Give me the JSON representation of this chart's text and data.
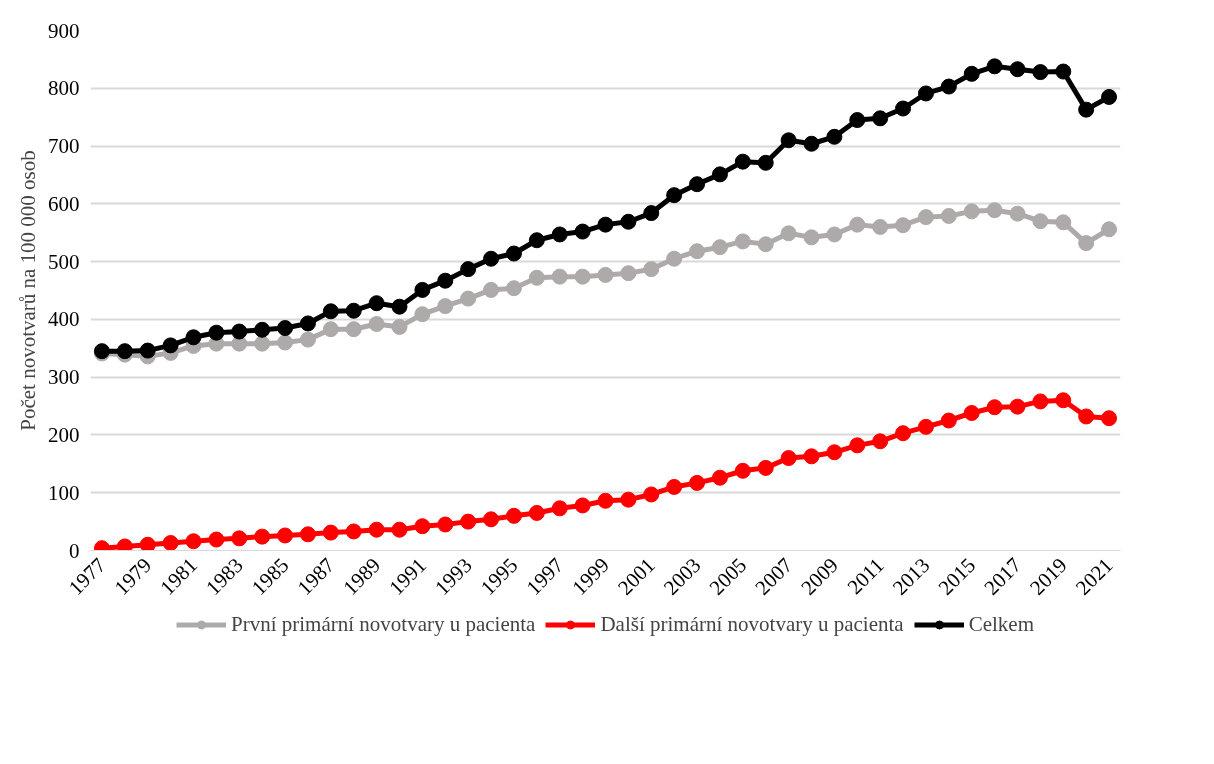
{
  "chart_data": {
    "type": "line",
    "ylabel": "Počet novotvarů na 100 000 osob",
    "x": [
      1977,
      1978,
      1979,
      1980,
      1981,
      1982,
      1983,
      1984,
      1985,
      1986,
      1987,
      1988,
      1989,
      1990,
      1991,
      1992,
      1993,
      1994,
      1995,
      1996,
      1997,
      1998,
      1999,
      2000,
      2001,
      2002,
      2003,
      2004,
      2005,
      2006,
      2007,
      2008,
      2009,
      2010,
      2011,
      2012,
      2013,
      2014,
      2015,
      2016,
      2017,
      2018,
      2019,
      2020,
      2021
    ],
    "series": [
      {
        "name": "První primární novotvary u pacienta",
        "color": "#aeaaaa",
        "values": [
          341,
          339,
          336,
          342,
          354,
          358,
          358,
          358,
          360,
          365,
          383,
          383,
          392,
          387,
          409,
          423,
          436,
          451,
          454,
          472,
          474,
          474,
          477,
          480,
          487,
          505,
          518,
          525,
          535,
          530,
          549,
          542,
          547,
          564,
          560,
          563,
          577,
          579,
          587,
          589,
          583,
          570,
          568,
          532,
          556
        ]
      },
      {
        "name": "Další primární novotvary u pacienta",
        "color": "#ff0000",
        "values": [
          4,
          7,
          10,
          13,
          16,
          19,
          21,
          24,
          26,
          28,
          31,
          33,
          36,
          36,
          42,
          45,
          50,
          54,
          60,
          65,
          73,
          78,
          86,
          88,
          97,
          110,
          117,
          126,
          138,
          143,
          160,
          163,
          170,
          182,
          189,
          203,
          214,
          225,
          238,
          248,
          249,
          258,
          260,
          232,
          229
        ]
      },
      {
        "name": "Celkem",
        "color": "#000000",
        "values": [
          345,
          345,
          346,
          355,
          369,
          377,
          379,
          382,
          385,
          393,
          414,
          415,
          428,
          422,
          451,
          467,
          487,
          505,
          514,
          537,
          547,
          552,
          564,
          569,
          584,
          615,
          634,
          651,
          673,
          671,
          710,
          704,
          716,
          745,
          748,
          765,
          791,
          803,
          825,
          838,
          833,
          828,
          829,
          763,
          785
        ]
      }
    ],
    "xlim": [
      1976.5,
      2021.5
    ],
    "xticks": [
      1977,
      1979,
      1981,
      1983,
      1985,
      1987,
      1989,
      1991,
      1993,
      1995,
      1997,
      1999,
      2001,
      2003,
      2005,
      2007,
      2009,
      2011,
      2013,
      2015,
      2017,
      2019,
      2021
    ],
    "ylim": [
      0,
      900
    ],
    "yticks": [
      0,
      100,
      200,
      300,
      400,
      500,
      600,
      700,
      800,
      900
    ],
    "grid": "y",
    "legend": "bottom",
    "marker": "circle",
    "line_style": "solid"
  }
}
